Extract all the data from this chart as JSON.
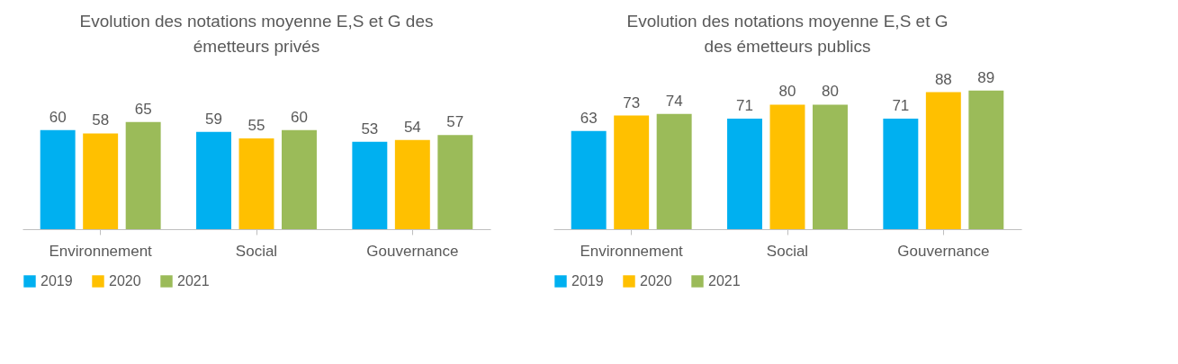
{
  "chart_data": [
    {
      "type": "bar",
      "title": "Evolution des notations moyenne E,S et G des\németteurs privés",
      "categories": [
        "Environnement",
        "Social",
        "Gouvernance"
      ],
      "series": [
        {
          "name": "2019",
          "color": "#00b0f0",
          "values": [
            60,
            59,
            53
          ]
        },
        {
          "name": "2020",
          "color": "#ffc000",
          "values": [
            58,
            55,
            54
          ]
        },
        {
          "name": "2021",
          "color": "#9bbb59",
          "values": [
            65,
            60,
            57
          ]
        }
      ],
      "data_labels": true,
      "legend": "bottom",
      "grid": false,
      "tick_labels": "x"
    },
    {
      "type": "bar",
      "title": "Evolution des notations moyenne E,S et G\ndes émetteurs publics",
      "categories": [
        "Environnement",
        "Social",
        "Gouvernance"
      ],
      "series": [
        {
          "name": "2019",
          "color": "#00b0f0",
          "values": [
            63,
            71,
            71
          ]
        },
        {
          "name": "2020",
          "color": "#ffc000",
          "values": [
            73,
            80,
            88
          ]
        },
        {
          "name": "2021",
          "color": "#9bbb59",
          "values": [
            74,
            80,
            89
          ]
        }
      ],
      "data_labels": true,
      "legend": "bottom",
      "grid": false,
      "tick_labels": "x"
    }
  ]
}
